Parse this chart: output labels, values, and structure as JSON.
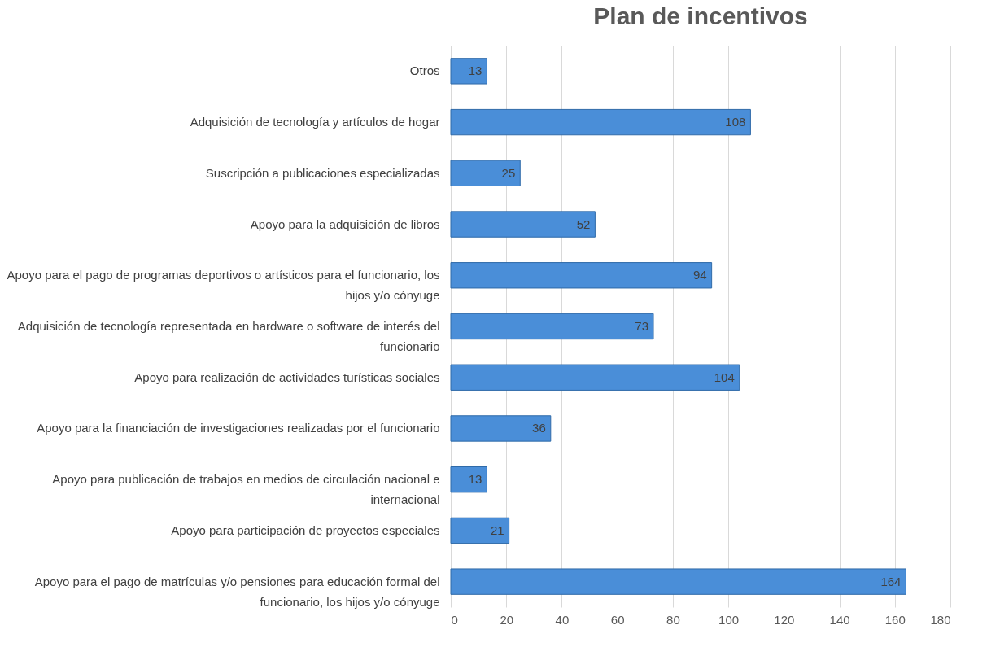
{
  "chart_data": {
    "type": "bar",
    "title": "Plan de incentivos",
    "orientation": "horizontal",
    "categories": [
      "Otros",
      "Adquisición de tecnología y artículos de hogar",
      "Suscripción a publicaciones especializadas",
      "Apoyo para la adquisición de libros",
      "Apoyo para el pago de programas deportivos o artísticos para el funcionario, los hijos y/o cónyuge",
      "Adquisición de tecnología representada en hardware o software de interés del funcionario",
      "Apoyo para realización de actividades turísticas sociales",
      "Apoyo para la financiación de investigaciones realizadas por el funcionario",
      "Apoyo para publicación de trabajos en medios de circulación nacional e internacional",
      "Apoyo para participación de proyectos especiales",
      "Apoyo para el pago de matrículas y/o pensiones para educación formal del funcionario, los hijos y/o cónyuge"
    ],
    "values": [
      13,
      108,
      25,
      52,
      94,
      73,
      104,
      36,
      13,
      21,
      164
    ],
    "color": "#4a8ed8",
    "xlim": [
      0,
      180
    ],
    "xticks": [
      0,
      20,
      40,
      60,
      80,
      100,
      120,
      140,
      160,
      180
    ],
    "grid": "x",
    "data_labels": true
  }
}
